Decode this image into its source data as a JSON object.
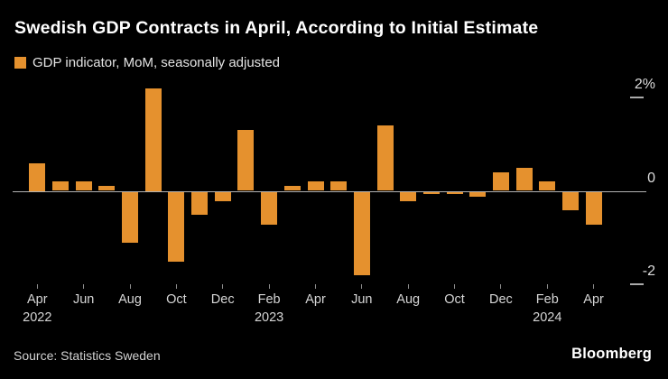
{
  "title": "Swedish GDP Contracts in April, According to Initial Estimate",
  "legend": {
    "label": "GDP indicator, MoM, seasonally adjusted"
  },
  "source": "Source: Statistics Sweden",
  "brand": "Bloomberg",
  "colors": {
    "background": "#000000",
    "bar": "#E5912E",
    "title_text": "#FFFFFF",
    "axis_text": "#D6D6D6",
    "zero_line": "#B3B3B3"
  },
  "chart_data": {
    "type": "bar",
    "unit": "%",
    "title": "Swedish GDP Contracts in April, According to Initial Estimate",
    "subtitle_legend": "GDP indicator, MoM, seasonally adjusted",
    "categories": [
      "Apr 2022",
      "May 2022",
      "Jun 2022",
      "Jul 2022",
      "Aug 2022",
      "Sep 2022",
      "Oct 2022",
      "Nov 2022",
      "Dec 2022",
      "Jan 2023",
      "Feb 2023",
      "Mar 2023",
      "Apr 2023",
      "May 2023",
      "Jun 2023",
      "Jul 2023",
      "Aug 2023",
      "Sep 2023",
      "Oct 2023",
      "Nov 2023",
      "Dec 2023",
      "Jan 2024",
      "Feb 2024",
      "Mar 2024",
      "Apr 2024"
    ],
    "values": [
      0.6,
      0.2,
      0.2,
      0.1,
      -1.1,
      2.2,
      -1.5,
      -0.5,
      -0.2,
      1.3,
      -0.7,
      0.1,
      0.2,
      0.2,
      -1.8,
      1.4,
      -0.2,
      -0.05,
      -0.05,
      -0.1,
      0.4,
      0.5,
      0.2,
      -0.4,
      -0.7
    ],
    "ylim": [
      -2.4,
      2.4
    ],
    "yticks": [
      {
        "value": 2,
        "label": "2%"
      },
      {
        "value": 0,
        "label": "0"
      },
      {
        "value": -2,
        "label": "-2"
      }
    ],
    "xticks": [
      {
        "month": "Apr",
        "year": "2022"
      },
      {
        "month": "Jun"
      },
      {
        "month": "Aug"
      },
      {
        "month": "Oct"
      },
      {
        "month": "Dec"
      },
      {
        "month": "Feb",
        "year": "2023"
      },
      {
        "month": "Apr"
      },
      {
        "month": "Jun"
      },
      {
        "month": "Aug"
      },
      {
        "month": "Oct"
      },
      {
        "month": "Dec"
      },
      {
        "month": "Feb",
        "year": "2024"
      },
      {
        "month": "Apr"
      }
    ],
    "xtick_every": 2,
    "grid": false,
    "legend_position": "top-left",
    "bar_color": "#E5912E"
  }
}
